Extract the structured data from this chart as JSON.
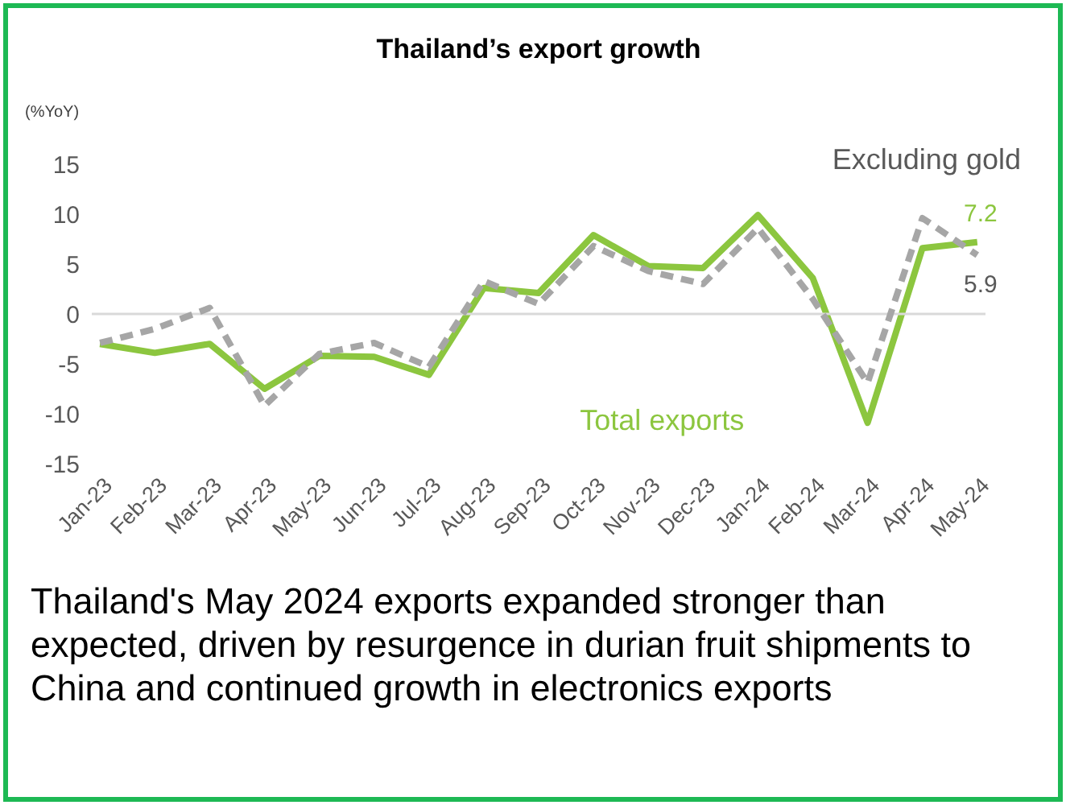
{
  "chart_data": {
    "type": "line",
    "title": "Thailand’s export growth",
    "ylabel": "(%YoY)",
    "categories": [
      "Jan-23",
      "Feb-23",
      "Mar-23",
      "Apr-23",
      "May-23",
      "Jun-23",
      "Jul-23",
      "Aug-23",
      "Sep-23",
      "Oct-23",
      "Nov-23",
      "Dec-23",
      "Jan-24",
      "Feb-24",
      "Mar-24",
      "Apr-24",
      "May-24"
    ],
    "series": [
      {
        "name": "Total exports",
        "color": "#8cc63f",
        "line_style": "solid",
        "values": [
          -3,
          -3.9,
          -3,
          -7.5,
          -4.2,
          -4.3,
          -6.1,
          2.6,
          2.1,
          7.9,
          4.8,
          4.6,
          9.9,
          3.6,
          -10.9,
          6.6,
          7.2
        ],
        "value_labels": [
          null,
          null,
          null,
          null,
          null,
          null,
          null,
          null,
          null,
          null,
          null,
          null,
          null,
          null,
          null,
          null,
          "7.2"
        ]
      },
      {
        "name": "Excluding gold",
        "color": "#a6a6a6",
        "line_style": "dashed",
        "values": [
          -2.9,
          -1.5,
          0.6,
          -9.2,
          -4,
          -2.9,
          -5.3,
          3.3,
          1,
          6.8,
          4.3,
          3,
          8.6,
          1.5,
          -6.9,
          9.6,
          5.9
        ],
        "value_labels": [
          null,
          null,
          null,
          null,
          null,
          null,
          null,
          null,
          null,
          null,
          null,
          null,
          null,
          null,
          null,
          null,
          "5.9"
        ]
      }
    ],
    "ylim": [
      -15,
      15
    ],
    "yticks": [
      -15,
      -10,
      -5,
      0,
      5,
      10,
      15
    ],
    "grid": false,
    "legend": false,
    "marker": "none",
    "ref_lines": [
      {
        "axis": "y",
        "value": 0,
        "color": "#d9d9d9"
      }
    ],
    "annotations": [
      "Thailand's May 2024 exports expanded stronger than expected, driven by resurgence in durian fruit shipments to China and continued growth in electronics exports"
    ]
  }
}
